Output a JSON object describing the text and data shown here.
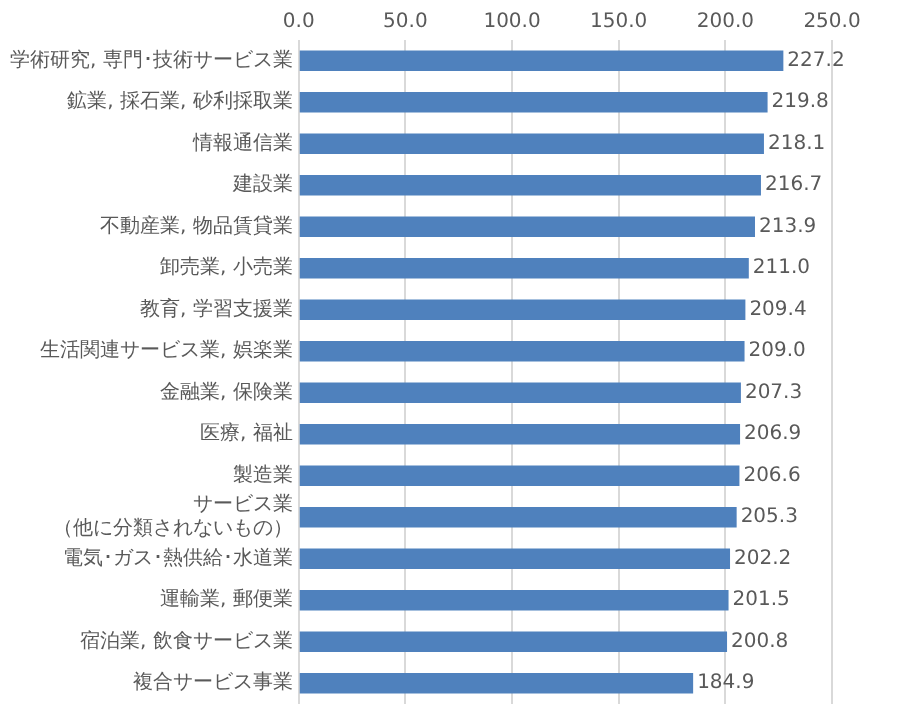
{
  "chart_data": {
    "type": "bar",
    "orientation": "horizontal",
    "categories": [
      "学術研究, 専門･技術サービス業",
      "鉱業, 採石業, 砂利採取業",
      "情報通信業",
      "建設業",
      "不動産業, 物品賃貸業",
      "卸売業, 小売業",
      "教育, 学習支援業",
      "生活関連サービス業, 娯楽業",
      "金融業, 保険業",
      "医療, 福祉",
      "製造業",
      "サービス業（他に分類されないもの）",
      "電気･ガス･熱供給･水道業",
      "運輸業, 郵便業",
      "宿泊業, 飲食サービス業",
      "複合サービス事業"
    ],
    "values": [
      227.2,
      219.8,
      218.1,
      216.7,
      213.9,
      211.0,
      209.4,
      209.0,
      207.3,
      206.9,
      206.6,
      205.3,
      202.2,
      201.5,
      200.8,
      184.9
    ],
    "value_labels": [
      "227.2",
      "219.8",
      "218.1",
      "216.7",
      "213.9",
      "211.0",
      "209.4",
      "209.0",
      "207.3",
      "206.9",
      "206.6",
      "205.3",
      "202.2",
      "201.5",
      "200.8",
      "184.9"
    ],
    "color": "#4f81bd",
    "xlim": [
      0,
      250
    ],
    "xticks": [
      {
        "value": 0,
        "label": "0.0"
      },
      {
        "value": 50,
        "label": "50.0"
      },
      {
        "value": 100,
        "label": "100.0"
      },
      {
        "value": 150,
        "label": "150.0"
      },
      {
        "value": 200,
        "label": "200.0"
      },
      {
        "value": 250,
        "label": "250.0"
      }
    ],
    "grid": "x",
    "legend": false
  }
}
